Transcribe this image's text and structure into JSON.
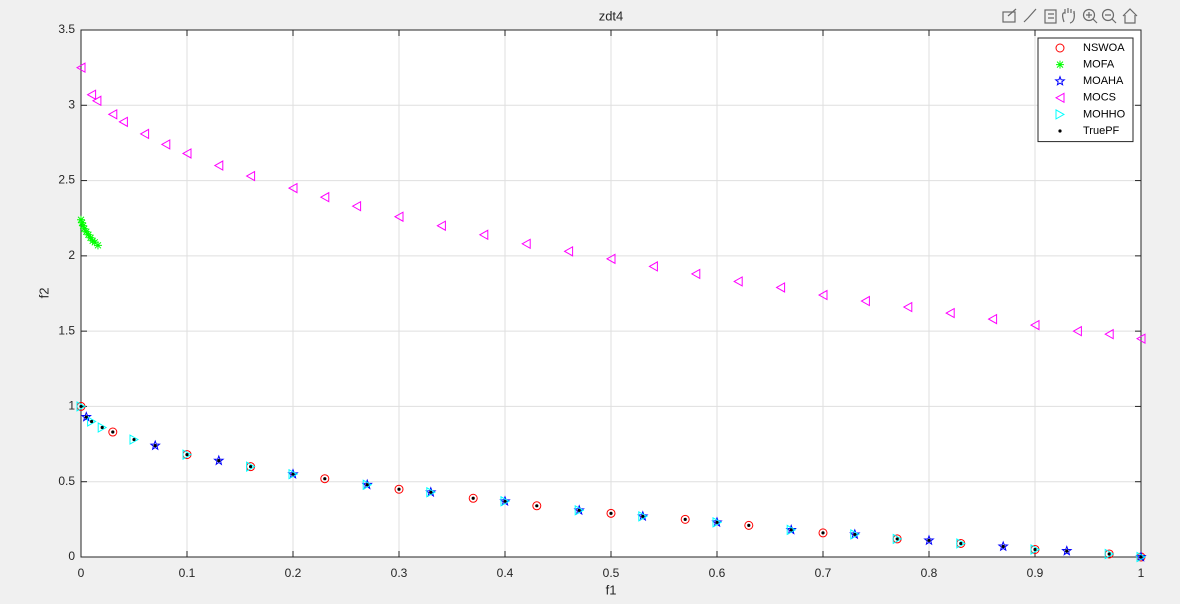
{
  "chart_data": {
    "type": "scatter",
    "title": "zdt4",
    "x_label": "f1",
    "y_label": "f2",
    "xlim": [
      0,
      1
    ],
    "ylim": [
      0,
      3.5
    ],
    "xticks": [
      0,
      0.1,
      0.2,
      0.3,
      0.4,
      0.5,
      0.6,
      0.7,
      0.8,
      0.9,
      1
    ],
    "yticks": [
      0,
      0.5,
      1,
      1.5,
      2,
      2.5,
      3,
      3.5
    ],
    "grid": true,
    "legend_location": "northeast",
    "series": [
      {
        "name": "NSWOA",
        "color": "#ff0000",
        "marker": "circle",
        "x": [
          0,
          0.03,
          0.1,
          0.16,
          0.23,
          0.3,
          0.37,
          0.43,
          0.5,
          0.57,
          0.63,
          0.7,
          0.77,
          0.83,
          0.9,
          0.97,
          1
        ],
        "y": [
          1,
          0.83,
          0.68,
          0.6,
          0.52,
          0.45,
          0.39,
          0.34,
          0.29,
          0.25,
          0.21,
          0.16,
          0.12,
          0.09,
          0.05,
          0.02,
          0
        ]
      },
      {
        "name": "MOFA",
        "color": "#00ff00",
        "marker": "asterisk",
        "x": [
          0,
          0.001,
          0.002,
          0.003,
          0.005,
          0.007,
          0.009,
          0.011,
          0.013,
          0.016
        ],
        "y": [
          2.24,
          2.22,
          2.2,
          2.18,
          2.16,
          2.14,
          2.12,
          2.1,
          2.09,
          2.07
        ]
      },
      {
        "name": "MOAHA",
        "color": "#0000ff",
        "marker": "pentagram",
        "x": [
          0.005,
          0.07,
          0.13,
          0.2,
          0.27,
          0.33,
          0.4,
          0.47,
          0.53,
          0.6,
          0.67,
          0.73,
          0.8,
          0.87,
          0.93,
          1
        ],
        "y": [
          0.93,
          0.74,
          0.64,
          0.55,
          0.48,
          0.43,
          0.37,
          0.31,
          0.27,
          0.23,
          0.18,
          0.15,
          0.11,
          0.07,
          0.04,
          0
        ]
      },
      {
        "name": "MOCS",
        "color": "#ff00ff",
        "marker": "triangle-left",
        "x": [
          0,
          0.01,
          0.015,
          0.03,
          0.04,
          0.06,
          0.08,
          0.1,
          0.13,
          0.16,
          0.2,
          0.23,
          0.26,
          0.3,
          0.34,
          0.38,
          0.42,
          0.46,
          0.5,
          0.54,
          0.58,
          0.62,
          0.66,
          0.7,
          0.74,
          0.78,
          0.82,
          0.86,
          0.9,
          0.94,
          0.97,
          1
        ],
        "y": [
          3.25,
          3.07,
          3.03,
          2.94,
          2.89,
          2.81,
          2.74,
          2.68,
          2.6,
          2.53,
          2.45,
          2.39,
          2.33,
          2.26,
          2.2,
          2.14,
          2.08,
          2.03,
          1.98,
          1.93,
          1.88,
          1.83,
          1.79,
          1.74,
          1.7,
          1.66,
          1.62,
          1.58,
          1.54,
          1.5,
          1.48,
          1.45
        ]
      },
      {
        "name": "MOHHO",
        "color": "#00ffff",
        "marker": "triangle-right",
        "x": [
          0,
          0.01,
          0.02,
          0.05,
          0.1,
          0.16,
          0.2,
          0.27,
          0.33,
          0.4,
          0.47,
          0.53,
          0.6,
          0.67,
          0.73,
          0.77,
          0.83,
          0.9,
          0.97,
          1
        ],
        "y": [
          1,
          0.9,
          0.86,
          0.78,
          0.68,
          0.6,
          0.55,
          0.48,
          0.43,
          0.37,
          0.31,
          0.27,
          0.23,
          0.18,
          0.15,
          0.12,
          0.09,
          0.05,
          0.02,
          0
        ]
      },
      {
        "name": "TruePF",
        "color": "#000000",
        "marker": "point",
        "x": [
          0,
          0.005,
          0.01,
          0.02,
          0.03,
          0.05,
          0.07,
          0.1,
          0.13,
          0.16,
          0.2,
          0.23,
          0.27,
          0.3,
          0.33,
          0.37,
          0.4,
          0.43,
          0.47,
          0.5,
          0.53,
          0.57,
          0.6,
          0.63,
          0.67,
          0.7,
          0.73,
          0.77,
          0.8,
          0.83,
          0.87,
          0.9,
          0.93,
          0.97,
          1
        ],
        "y": [
          1,
          0.93,
          0.9,
          0.86,
          0.83,
          0.78,
          0.74,
          0.68,
          0.64,
          0.6,
          0.55,
          0.52,
          0.48,
          0.45,
          0.43,
          0.39,
          0.37,
          0.34,
          0.31,
          0.29,
          0.27,
          0.25,
          0.23,
          0.21,
          0.18,
          0.16,
          0.15,
          0.12,
          0.11,
          0.09,
          0.07,
          0.05,
          0.04,
          0.02,
          0
        ]
      }
    ]
  }
}
